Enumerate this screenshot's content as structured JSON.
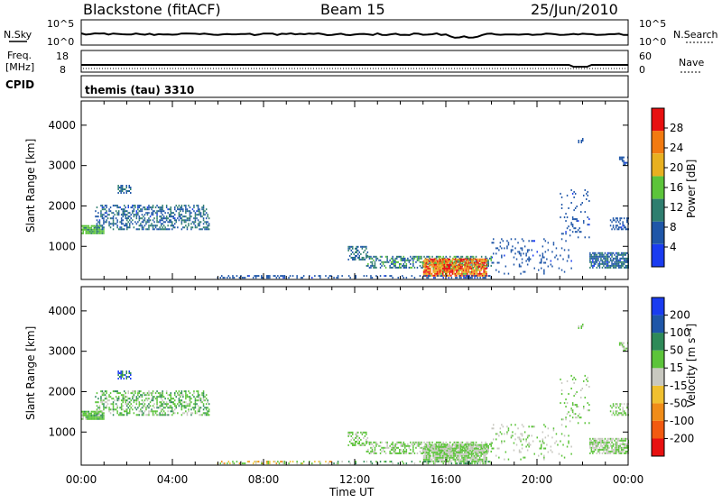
{
  "header": {
    "radar": "Blackstone (fitACF)",
    "beam": "Beam 15",
    "date": "25/Jun/2010"
  },
  "status": {
    "nsky_label": "N.Sky",
    "nsearch_label": "N.Search",
    "freq_label_1": "Freq.",
    "freq_label_2": "[MHz]",
    "nave_label": "Nave",
    "cpid_label": "CPID",
    "cpid_text": "themis (tau) 3310",
    "noise_ticks_top": "10^5",
    "noise_ticks_bottom": "10^0",
    "freq_ticks": [
      "18",
      "8"
    ],
    "nave_ticks": [
      "60",
      "0"
    ]
  },
  "chart_data": [
    {
      "type": "heatmap",
      "panel": "power",
      "ylabel": "Slant Range [km]",
      "yticks": [
        "1000",
        "2000",
        "3000",
        "4000"
      ],
      "ylim": [
        180,
        4600
      ],
      "colorbar_label": "Power [dB]",
      "colorbar_ticks": [
        "4",
        "8",
        "12",
        "16",
        "20",
        "24",
        "28"
      ],
      "colors": [
        "#1a3cf0",
        "#1f56a8",
        "#2f7e6f",
        "#5cc43a",
        "#e8b020",
        "#f27a10",
        "#e81010"
      ]
    },
    {
      "type": "heatmap",
      "panel": "velocity",
      "ylabel": "Slant Range [km]",
      "yticks": [
        "1000",
        "2000",
        "3000",
        "4000"
      ],
      "ylim": [
        180,
        4600
      ],
      "colorbar_label": "Velocity [m s⁻¹]",
      "colorbar_ticks": [
        "-200",
        "-100",
        "-50",
        "-15",
        "15",
        "50",
        "100",
        "200"
      ],
      "colors": [
        "#e81010",
        "#f25a10",
        "#f08c18",
        "#f0c030",
        "#c8c8c0",
        "#5cc43a",
        "#2e8a58",
        "#1f56a8",
        "#1a3cf0"
      ]
    }
  ],
  "xaxis": {
    "label": "Time UT",
    "ticks": [
      "00:00",
      "04:00",
      "08:00",
      "12:00",
      "16:00",
      "20:00",
      "00:00"
    ]
  }
}
